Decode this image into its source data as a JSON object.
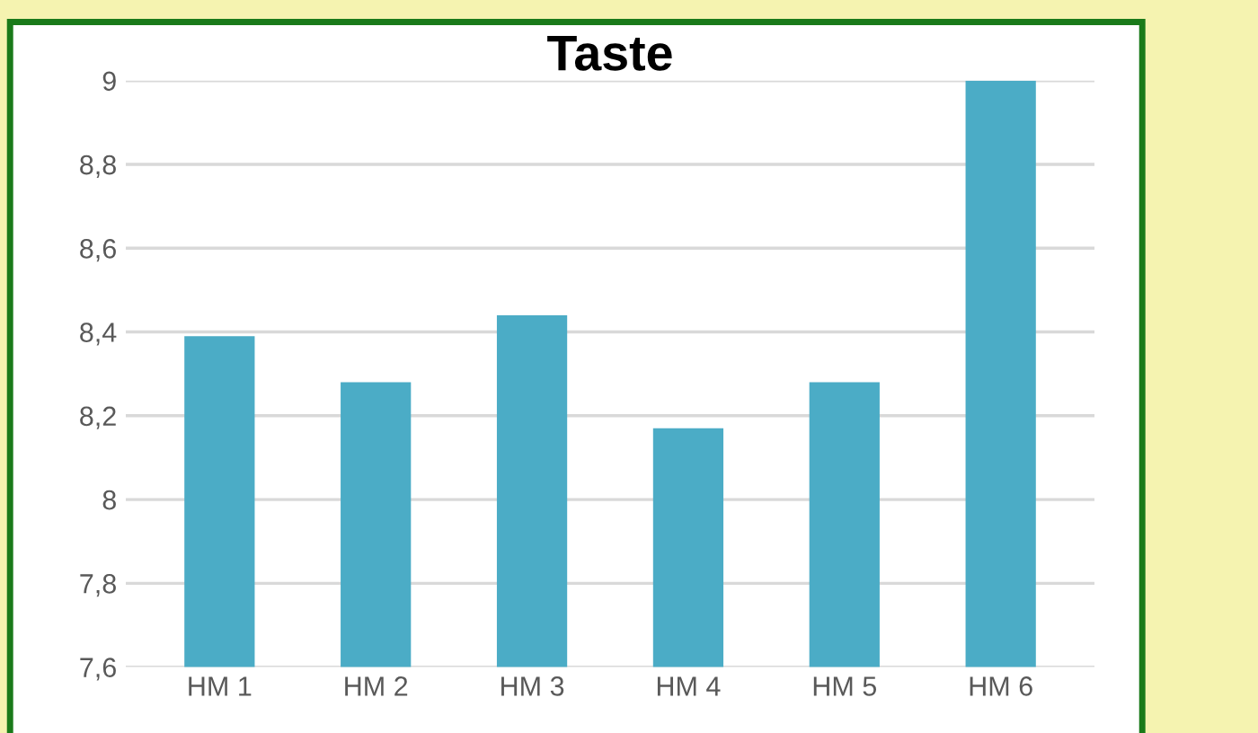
{
  "chart_data": {
    "type": "bar",
    "title": "Taste",
    "categories": [
      "HM 1",
      "HM 2",
      "HM 3",
      "HM 4",
      "HM 5",
      "HM 6"
    ],
    "values": [
      8.39,
      8.28,
      8.44,
      8.17,
      8.28,
      9.0
    ],
    "color": "#4bacc6",
    "ylim": [
      7.6,
      9
    ],
    "yticks": [
      {
        "value": 7.6,
        "label": "7,6"
      },
      {
        "value": 7.8,
        "label": "7,8"
      },
      {
        "value": 8,
        "label": "8"
      },
      {
        "value": 8.2,
        "label": "8,2"
      },
      {
        "value": 8.4,
        "label": "8,4"
      },
      {
        "value": 8.6,
        "label": "8,6"
      },
      {
        "value": 8.8,
        "label": "8,8"
      },
      {
        "value": 9,
        "label": "9"
      }
    ],
    "grid": "y"
  }
}
